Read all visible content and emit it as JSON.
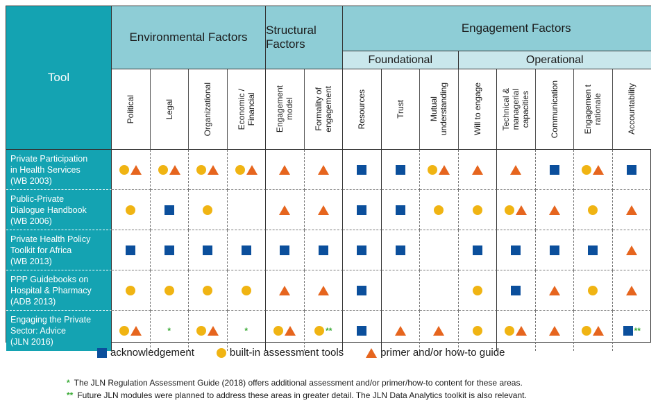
{
  "header": {
    "tool": "Tool",
    "environmental": "Environmental Factors",
    "structural": "Structural Factors",
    "engagement": "Engagement Factors",
    "foundational": "Foundational",
    "operational": "Operational"
  },
  "columns": [
    "Political",
    "Legal",
    "Organizational",
    "Economic /\nFinancial",
    "Engagement\nmodel",
    "Formality of\nengagement",
    "Resources",
    "Trust",
    "Mutual\nunderstanding",
    "Will to engage",
    "Technical &\nmanagerial\ncapacities",
    "Communication",
    "Engagemen t\nrationale",
    "Accountability"
  ],
  "rows": [
    {
      "tool": "Private Participation\nin Health Services\n(WB 2003)",
      "cells": [
        [
          "circle",
          "triangle"
        ],
        [
          "circle",
          "triangle"
        ],
        [
          "circle",
          "triangle"
        ],
        [
          "circle",
          "triangle"
        ],
        [
          "triangle"
        ],
        [
          "triangle"
        ],
        [
          "square"
        ],
        [
          "square"
        ],
        [
          "circle",
          "triangle"
        ],
        [
          "triangle"
        ],
        [
          "triangle"
        ],
        [
          "square"
        ],
        [
          "circle",
          "triangle"
        ],
        [
          "square"
        ]
      ]
    },
    {
      "tool": "Public-Private\nDialogue Handbook\n(WB 2006)",
      "cells": [
        [
          "circle"
        ],
        [
          "square"
        ],
        [
          "circle"
        ],
        [],
        [
          "triangle"
        ],
        [
          "triangle"
        ],
        [
          "square"
        ],
        [
          "square"
        ],
        [
          "circle"
        ],
        [
          "circle"
        ],
        [
          "circle",
          "triangle"
        ],
        [
          "triangle"
        ],
        [
          "circle"
        ],
        [
          "triangle"
        ]
      ]
    },
    {
      "tool": "Private Health Policy\nToolkit for Africa\n(WB 2013)",
      "cells": [
        [
          "square"
        ],
        [
          "square"
        ],
        [
          "square"
        ],
        [
          "square"
        ],
        [
          "square"
        ],
        [
          "square"
        ],
        [
          "square"
        ],
        [
          "square"
        ],
        [],
        [
          "square"
        ],
        [
          "square"
        ],
        [
          "square"
        ],
        [
          "square"
        ],
        [
          "triangle"
        ]
      ]
    },
    {
      "tool": "PPP Guidebooks on\nHospital & Pharmacy\n(ADB 2013)",
      "cells": [
        [
          "circle"
        ],
        [
          "circle"
        ],
        [
          "circle"
        ],
        [
          "circle"
        ],
        [
          "triangle"
        ],
        [
          "triangle"
        ],
        [
          "square"
        ],
        [],
        [],
        [
          "circle"
        ],
        [
          "square"
        ],
        [
          "triangle"
        ],
        [
          "circle"
        ],
        [
          "triangle"
        ]
      ]
    },
    {
      "tool": "Engaging the Private\nSector: Advice\n(JLN 2016)",
      "cells": [
        [
          "circle",
          "triangle"
        ],
        [
          "star1"
        ],
        [
          "circle",
          "triangle"
        ],
        [
          "star1"
        ],
        [
          "circle",
          "triangle"
        ],
        [
          "circle",
          "star2"
        ],
        [
          "square"
        ],
        [
          "triangle"
        ],
        [
          "triangle"
        ],
        [
          "circle"
        ],
        [
          "circle",
          "triangle"
        ],
        [
          "triangle"
        ],
        [
          "circle",
          "triangle"
        ],
        [
          "square",
          "star2"
        ]
      ]
    }
  ],
  "legend": {
    "square": "acknowledgement",
    "circle": "built-in assessment tools",
    "triangle": "primer and/or how-to guide"
  },
  "notes": {
    "star1": "*",
    "star2": "**",
    "note1": "The JLN Regulation Assessment Guide (2018) offers additional assessment and/or primer/how-to content for these areas.",
    "note2": "Future JLN modules were planned to address these areas in greater detail. The JLN Data Analytics toolkit is also relevant."
  },
  "colors": {
    "teal": "#14a3b2",
    "lightTeal": "#8ecdd6",
    "paleTeal": "#c9e7ec",
    "blue": "#0b4f9c",
    "yellow": "#f0b413",
    "orange": "#e6651e",
    "green": "#3aaa35"
  }
}
